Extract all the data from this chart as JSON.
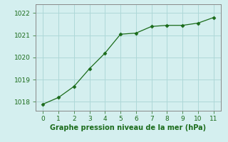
{
  "x": [
    0,
    1,
    2,
    3,
    4,
    5,
    6,
    7,
    8,
    9,
    10,
    11
  ],
  "y": [
    1017.9,
    1018.2,
    1018.7,
    1019.5,
    1020.2,
    1021.05,
    1021.1,
    1021.4,
    1021.45,
    1021.45,
    1021.55,
    1021.8
  ],
  "line_color": "#1a6b1a",
  "marker": "D",
  "marker_size": 2.5,
  "background_color": "#d4efef",
  "grid_color": "#aed8d8",
  "xlabel": "Graphe pression niveau de la mer (hPa)",
  "xlabel_fontsize": 7,
  "ylabel_ticks": [
    1018,
    1019,
    1020,
    1021,
    1022
  ],
  "xlim": [
    -0.5,
    11.5
  ],
  "ylim": [
    1017.6,
    1022.4
  ],
  "xticks": [
    0,
    1,
    2,
    3,
    4,
    5,
    6,
    7,
    8,
    9,
    10,
    11
  ],
  "tick_fontsize": 6.5,
  "line_color_dark": "#1a6b1a",
  "spine_color": "#888888"
}
